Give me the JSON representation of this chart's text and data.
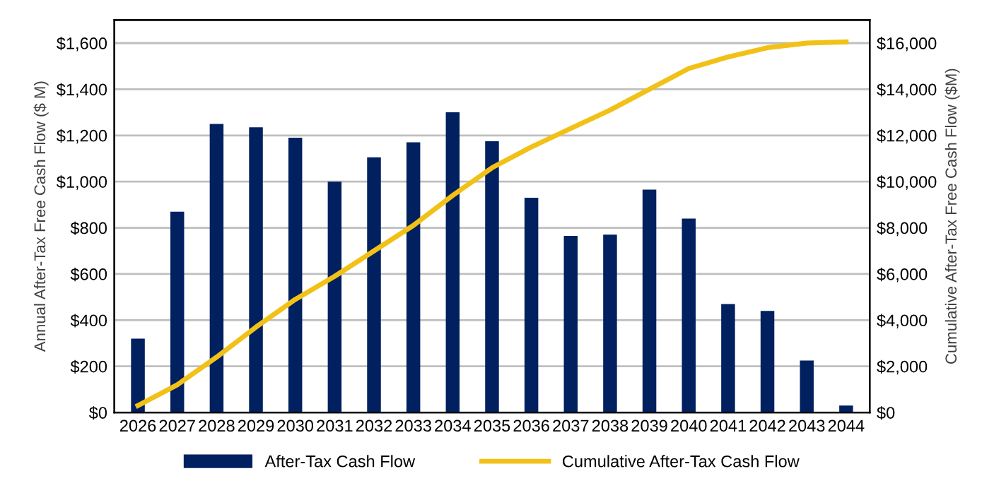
{
  "chart_data": {
    "type": "bar",
    "categories": [
      "2026",
      "2027",
      "2028",
      "2029",
      "2030",
      "2031",
      "2032",
      "2033",
      "2034",
      "2035",
      "2036",
      "2037",
      "2038",
      "2039",
      "2040",
      "2041",
      "2042",
      "2043",
      "2044"
    ],
    "series": [
      {
        "name": "After-Tax Cash Flow",
        "color": "#002060",
        "values": [
          320,
          870,
          1250,
          1235,
          1190,
          1000,
          1105,
          1170,
          1300,
          1175,
          930,
          765,
          770,
          965,
          840,
          470,
          440,
          225,
          30
        ]
      },
      {
        "name": "Cumulative After-Tax Cash Flow",
        "type": "line",
        "axis": "y2",
        "color": "#f2c117",
        "values": [
          300,
          1200,
          2400,
          3700,
          4900,
          5900,
          7000,
          8100,
          9400,
          10600,
          11500,
          12300,
          13100,
          14000,
          14900,
          15400,
          15800,
          16000,
          16050
        ]
      }
    ],
    "ylabel": "Annual After-Tax Free Cash Flow ($ M)",
    "y2label": "Cumulative After-Tax Free Cash Flow ($M)",
    "ylim": [
      0,
      1700
    ],
    "yticks": [
      {
        "value": 0,
        "label": "$0"
      },
      {
        "value": 200,
        "label": "$200"
      },
      {
        "value": 400,
        "label": "$400"
      },
      {
        "value": 600,
        "label": "$600"
      },
      {
        "value": 800,
        "label": "$800"
      },
      {
        "value": 1000,
        "label": "$1,000"
      },
      {
        "value": 1200,
        "label": "$1,200"
      },
      {
        "value": 1400,
        "label": "$1,400"
      },
      {
        "value": 1600,
        "label": "$1,600"
      }
    ],
    "y2lim": [
      0,
      17000
    ],
    "y2ticks": [
      {
        "value": 0,
        "label": "$0"
      },
      {
        "value": 2000,
        "label": "$2,000"
      },
      {
        "value": 4000,
        "label": "$4,000"
      },
      {
        "value": 6000,
        "label": "$6,000"
      },
      {
        "value": 8000,
        "label": "$8,000"
      },
      {
        "value": 10000,
        "label": "$10,000"
      },
      {
        "value": 12000,
        "label": "$12,000"
      },
      {
        "value": 14000,
        "label": "$14,000"
      },
      {
        "value": 16000,
        "label": "$16,000"
      }
    ],
    "grid": "y",
    "legend": "bottom",
    "marker": "none"
  }
}
